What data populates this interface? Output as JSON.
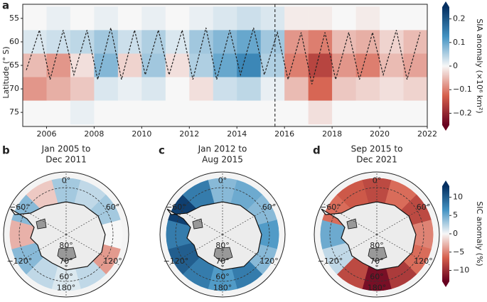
{
  "chart_data": [
    {
      "type": "heatmap",
      "panel": "a",
      "ylabel": "Latitude (° S)",
      "x": [
        2005,
        2006,
        2007,
        2008,
        2009,
        2010,
        2011,
        2012,
        2013,
        2014,
        2015,
        2016,
        2017,
        2018,
        2019,
        2020,
        2021
      ],
      "y": [
        55,
        60,
        65,
        70,
        75
      ],
      "values": [
        [
          0,
          0.02,
          -0.05,
          -0.08,
          0
        ],
        [
          0.01,
          0.03,
          -0.08,
          -0.06,
          0
        ],
        [
          0,
          0.04,
          -0.02,
          -0.04,
          0.01
        ],
        [
          0.01,
          0.06,
          0.08,
          0.02,
          0
        ],
        [
          0,
          0.03,
          -0.03,
          0.01,
          0
        ],
        [
          0.01,
          0.05,
          0.06,
          0.02,
          0
        ],
        [
          0,
          0.02,
          -0.02,
          0,
          0
        ],
        [
          0.01,
          0.06,
          0.05,
          -0.02,
          0
        ],
        [
          0.02,
          0.08,
          0.1,
          0.03,
          0
        ],
        [
          0.03,
          0.1,
          0.14,
          0.04,
          0
        ],
        [
          0.02,
          0.06,
          0.05,
          0.01,
          0
        ],
        [
          -0.01,
          -0.08,
          -0.1,
          -0.05,
          0
        ],
        [
          -0.01,
          -0.1,
          -0.16,
          -0.12,
          -0.02
        ],
        [
          0,
          -0.05,
          -0.08,
          -0.04,
          0
        ],
        [
          -0.01,
          -0.06,
          -0.1,
          -0.03,
          0
        ],
        [
          0,
          -0.03,
          -0.05,
          -0.02,
          0
        ],
        [
          0,
          -0.05,
          -0.07,
          -0.03,
          0
        ]
      ],
      "edge": {
        "x": [
          2005.15,
          2005.7,
          2006.15,
          2006.7,
          2007.15,
          2007.7,
          2008.15,
          2008.7,
          2009.15,
          2009.7,
          2010.15,
          2010.7,
          2011.15,
          2011.7,
          2012.15,
          2012.7,
          2013.15,
          2013.7,
          2014.15,
          2014.7,
          2015.15,
          2015.7,
          2016.15,
          2016.7,
          2017.15,
          2017.7,
          2018.15,
          2018.7,
          2019.15,
          2019.7,
          2020.15,
          2020.7,
          2021.15,
          2021.7
        ],
        "lat": [
          66,
          57.5,
          68,
          57.5,
          67,
          57.5,
          68,
          57,
          68,
          57.5,
          67,
          57.5,
          67,
          57.5,
          68,
          57,
          68,
          57.5,
          67,
          57,
          67,
          58,
          68,
          58,
          69,
          58,
          68,
          58,
          68,
          58,
          67,
          57.5,
          68,
          58
        ]
      },
      "divider": 2015.6,
      "xlim": [
        2005,
        2022
      ],
      "xticks": [
        2006,
        2008,
        2010,
        2012,
        2014,
        2016,
        2018,
        2020,
        2022
      ],
      "ylim": [
        52,
        78
      ],
      "yticks": [
        55,
        60,
        65,
        70,
        75
      ],
      "colorbar": {
        "label": "SIA anomaly (×10⁶ km²)",
        "clim": [
          -0.25,
          0.25
        ],
        "ticks": [
          {
            "value": 0.2,
            "label": "0.2"
          },
          {
            "value": 0.1,
            "label": "0.1"
          },
          {
            "value": 0,
            "label": "0"
          },
          {
            "value": -0.1,
            "label": "−0.1"
          },
          {
            "value": -0.2,
            "label": "−0.2"
          }
        ]
      }
    },
    {
      "type": "polar",
      "panel": "b",
      "title": [
        "Jan 2005 to",
        "Dec 2011"
      ],
      "lons": [
        0,
        30,
        60,
        90,
        120,
        150,
        180,
        210,
        240,
        270,
        300,
        330
      ],
      "values": [
        3,
        2,
        3,
        0,
        -4,
        2,
        1,
        2,
        4,
        -3,
        4,
        -2
      ],
      "lonticks": [
        {
          "value": 0,
          "label": "0°"
        },
        {
          "value": 60,
          "label": "60°"
        },
        {
          "value": 120,
          "label": "120°"
        },
        {
          "value": 180,
          "label": "180°"
        },
        {
          "value": -120,
          "label": "−120°"
        },
        {
          "value": -60,
          "label": "−60°"
        }
      ],
      "latticks": [
        {
          "value": 80,
          "label": "80°"
        },
        {
          "value": 70,
          "label": "70°"
        },
        {
          "value": 60,
          "label": "60°"
        }
      ]
    },
    {
      "type": "polar",
      "panel": "c",
      "title": [
        "Jan 2012 to",
        "Aug 2015"
      ],
      "lons": [
        0,
        30,
        60,
        90,
        120,
        150,
        180,
        210,
        240,
        270,
        300,
        330
      ],
      "values": [
        4,
        5,
        4,
        6,
        4,
        8,
        6,
        8,
        10,
        8,
        12,
        8
      ],
      "lonticks": [
        {
          "value": 0,
          "label": "0°"
        },
        {
          "value": 60,
          "label": "60°"
        },
        {
          "value": 120,
          "label": "120°"
        },
        {
          "value": 180,
          "label": "180°"
        },
        {
          "value": -120,
          "label": "−120°"
        },
        {
          "value": -60,
          "label": "−60°"
        }
      ],
      "latticks": [
        {
          "value": 80,
          "label": "80°"
        },
        {
          "value": 70,
          "label": "70°"
        },
        {
          "value": 60,
          "label": "60°"
        }
      ]
    },
    {
      "type": "polar",
      "panel": "d",
      "title": [
        "Sep 2015 to",
        "Dec 2021"
      ],
      "lons": [
        0,
        30,
        60,
        90,
        120,
        150,
        180,
        210,
        240,
        270,
        300,
        330
      ],
      "values": [
        -8,
        -6,
        -8,
        -5,
        -6,
        -9,
        -12,
        -8,
        2,
        5,
        -6,
        -7
      ],
      "lonticks": [
        {
          "value": 0,
          "label": "0°"
        },
        {
          "value": 60,
          "label": "60°"
        },
        {
          "value": 120,
          "label": "120°"
        },
        {
          "value": 180,
          "label": "180°"
        },
        {
          "value": -120,
          "label": "−120°"
        },
        {
          "value": -60,
          "label": "−60°"
        }
      ],
      "latticks": [
        {
          "value": 80,
          "label": "80°"
        },
        {
          "value": 70,
          "label": "70°"
        },
        {
          "value": 60,
          "label": "60°"
        }
      ],
      "colorbar": {
        "label": "SIC anomaly (%)",
        "clim": [
          -13,
          13
        ],
        "ticks": [
          {
            "value": 10,
            "label": "10"
          },
          {
            "value": 5,
            "label": "5"
          },
          {
            "value": 0,
            "label": "0"
          },
          {
            "value": -5,
            "label": "−5"
          },
          {
            "value": -10,
            "label": "−10"
          }
        ]
      }
    }
  ]
}
